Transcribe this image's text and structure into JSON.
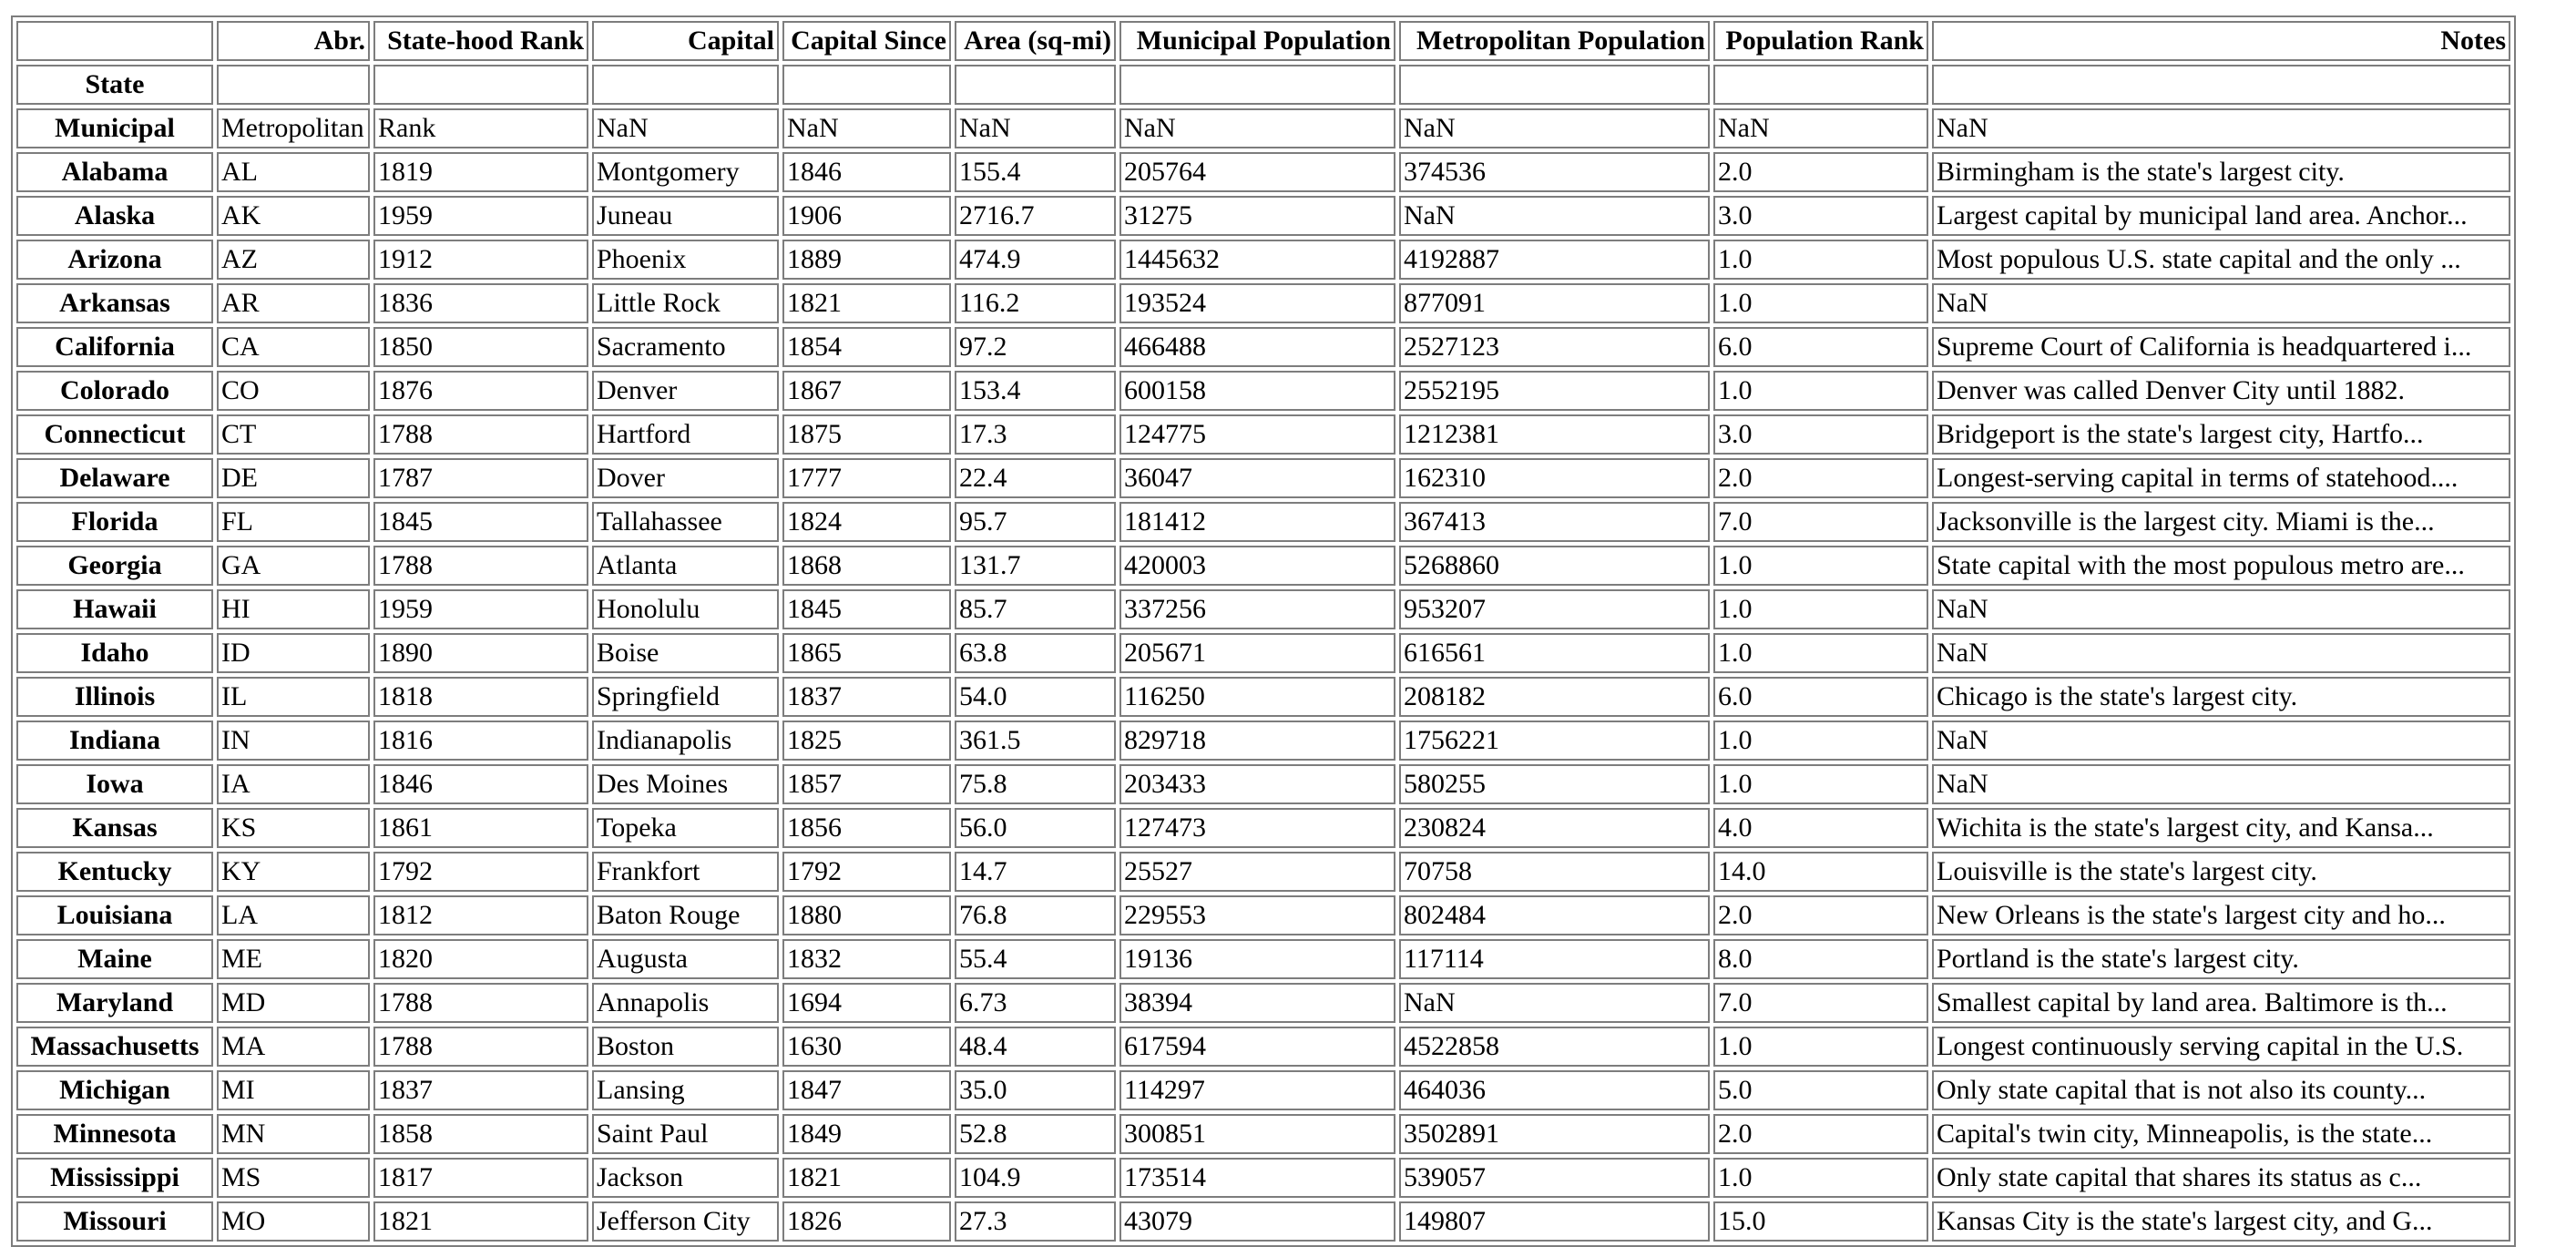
{
  "table": {
    "columns": [
      "",
      "Abr.",
      "State-hood Rank",
      "Capital",
      "Capital Since",
      "Area (sq-mi)",
      "Municipal Population",
      "Metropolitan Population",
      "Population Rank",
      "Notes"
    ],
    "index_name": "State",
    "rows": [
      {
        "index": "Municipal",
        "cells": [
          "Metropolitan",
          "Rank",
          "NaN",
          "NaN",
          "NaN",
          "NaN",
          "NaN",
          "NaN",
          "NaN"
        ]
      },
      {
        "index": "Alabama",
        "cells": [
          "AL",
          "1819",
          "Montgomery",
          "1846",
          "155.4",
          "205764",
          "374536",
          "2.0",
          "Birmingham is the state's largest city."
        ]
      },
      {
        "index": "Alaska",
        "cells": [
          "AK",
          "1959",
          "Juneau",
          "1906",
          "2716.7",
          "31275",
          "NaN",
          "3.0",
          "Largest capital by municipal land area. Anchor..."
        ]
      },
      {
        "index": "Arizona",
        "cells": [
          "AZ",
          "1912",
          "Phoenix",
          "1889",
          "474.9",
          "1445632",
          "4192887",
          "1.0",
          "Most populous U.S. state capital and the only ..."
        ]
      },
      {
        "index": "Arkansas",
        "cells": [
          "AR",
          "1836",
          "Little Rock",
          "1821",
          "116.2",
          "193524",
          "877091",
          "1.0",
          "NaN"
        ]
      },
      {
        "index": "California",
        "cells": [
          "CA",
          "1850",
          "Sacramento",
          "1854",
          "97.2",
          "466488",
          "2527123",
          "6.0",
          "Supreme Court of California is headquartered i..."
        ]
      },
      {
        "index": "Colorado",
        "cells": [
          "CO",
          "1876",
          "Denver",
          "1867",
          "153.4",
          "600158",
          "2552195",
          "1.0",
          "Denver was called Denver City until 1882."
        ]
      },
      {
        "index": "Connecticut",
        "cells": [
          "CT",
          "1788",
          "Hartford",
          "1875",
          "17.3",
          "124775",
          "1212381",
          "3.0",
          "Bridgeport is the state's largest city, Hartfo..."
        ]
      },
      {
        "index": "Delaware",
        "cells": [
          "DE",
          "1787",
          "Dover",
          "1777",
          "22.4",
          "36047",
          "162310",
          "2.0",
          "Longest-serving capital in terms of statehood...."
        ]
      },
      {
        "index": "Florida",
        "cells": [
          "FL",
          "1845",
          "Tallahassee",
          "1824",
          "95.7",
          "181412",
          "367413",
          "7.0",
          "Jacksonville is the largest city. Miami is the..."
        ]
      },
      {
        "index": "Georgia",
        "cells": [
          "GA",
          "1788",
          "Atlanta",
          "1868",
          "131.7",
          "420003",
          "5268860",
          "1.0",
          "State capital with the most populous metro are..."
        ]
      },
      {
        "index": "Hawaii",
        "cells": [
          "HI",
          "1959",
          "Honolulu",
          "1845",
          "85.7",
          "337256",
          "953207",
          "1.0",
          "NaN"
        ]
      },
      {
        "index": "Idaho",
        "cells": [
          "ID",
          "1890",
          "Boise",
          "1865",
          "63.8",
          "205671",
          "616561",
          "1.0",
          "NaN"
        ]
      },
      {
        "index": "Illinois",
        "cells": [
          "IL",
          "1818",
          "Springfield",
          "1837",
          "54.0",
          "116250",
          "208182",
          "6.0",
          "Chicago is the state's largest city."
        ]
      },
      {
        "index": "Indiana",
        "cells": [
          "IN",
          "1816",
          "Indianapolis",
          "1825",
          "361.5",
          "829718",
          "1756221",
          "1.0",
          "NaN"
        ]
      },
      {
        "index": "Iowa",
        "cells": [
          "IA",
          "1846",
          "Des Moines",
          "1857",
          "75.8",
          "203433",
          "580255",
          "1.0",
          "NaN"
        ]
      },
      {
        "index": "Kansas",
        "cells": [
          "KS",
          "1861",
          "Topeka",
          "1856",
          "56.0",
          "127473",
          "230824",
          "4.0",
          "Wichita is the state's largest city, and Kansa..."
        ]
      },
      {
        "index": "Kentucky",
        "cells": [
          "KY",
          "1792",
          "Frankfort",
          "1792",
          "14.7",
          "25527",
          "70758",
          "14.0",
          "Louisville is the state's largest city."
        ]
      },
      {
        "index": "Louisiana",
        "cells": [
          "LA",
          "1812",
          "Baton Rouge",
          "1880",
          "76.8",
          "229553",
          "802484",
          "2.0",
          "New Orleans is the state's largest city and ho..."
        ]
      },
      {
        "index": "Maine",
        "cells": [
          "ME",
          "1820",
          "Augusta",
          "1832",
          "55.4",
          "19136",
          "117114",
          "8.0",
          "Portland is the state's largest city."
        ]
      },
      {
        "index": "Maryland",
        "cells": [
          "MD",
          "1788",
          "Annapolis",
          "1694",
          "6.73",
          "38394",
          "NaN",
          "7.0",
          "Smallest capital by land area. Baltimore is th..."
        ]
      },
      {
        "index": "Massachusetts",
        "cells": [
          "MA",
          "1788",
          "Boston",
          "1630",
          "48.4",
          "617594",
          "4522858",
          "1.0",
          "Longest continuously serving capital in the U.S."
        ]
      },
      {
        "index": "Michigan",
        "cells": [
          "MI",
          "1837",
          "Lansing",
          "1847",
          "35.0",
          "114297",
          "464036",
          "5.0",
          "Only state capital that is not also its county..."
        ]
      },
      {
        "index": "Minnesota",
        "cells": [
          "MN",
          "1858",
          "Saint Paul",
          "1849",
          "52.8",
          "300851",
          "3502891",
          "2.0",
          "Capital's twin city, Minneapolis, is the state..."
        ]
      },
      {
        "index": "Mississippi",
        "cells": [
          "MS",
          "1817",
          "Jackson",
          "1821",
          "104.9",
          "173514",
          "539057",
          "1.0",
          "Only state capital that shares its status as c..."
        ]
      },
      {
        "index": "Missouri",
        "cells": [
          "MO",
          "1821",
          "Jefferson City",
          "1826",
          "27.3",
          "43079",
          "149807",
          "15.0",
          "Kansas City is the state's largest city, and G..."
        ]
      }
    ]
  }
}
